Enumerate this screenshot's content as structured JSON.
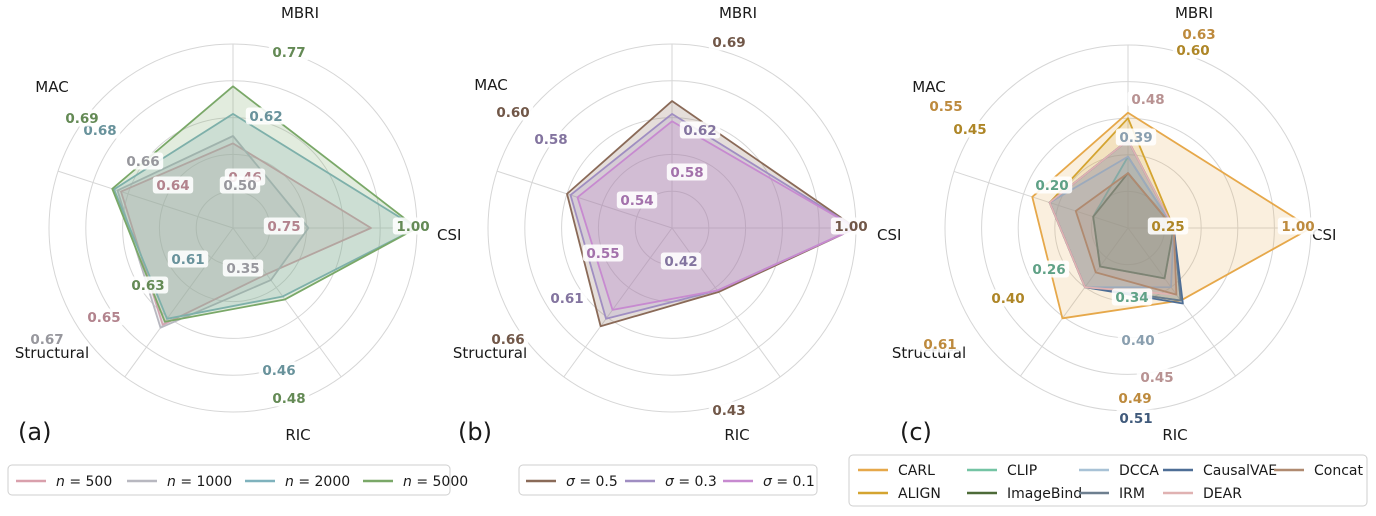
{
  "chart_data": [
    {
      "type": "radar",
      "panel_label": "(a)",
      "axes": [
        "MBRI",
        "CSI",
        "RIC",
        "Structural",
        "MAC"
      ],
      "rlim": [
        0,
        1.0
      ],
      "grid": true,
      "legend_position": "bottom",
      "series": [
        {
          "name": "n = 500",
          "legend_math": {
            "var": "n",
            "rhs": "= 500"
          },
          "color": "#d9a0ac",
          "values": [
            0.46,
            0.75,
            0.31,
            0.65,
            0.64
          ]
        },
        {
          "name": "n = 1000",
          "legend_math": {
            "var": "n",
            "rhs": "= 1000"
          },
          "color": "#b8b8c0",
          "values": [
            0.5,
            0.41,
            0.35,
            0.67,
            0.66
          ]
        },
        {
          "name": "n = 2000",
          "legend_math": {
            "var": "n",
            "rhs": "= 2000"
          },
          "color": "#7fb2bd",
          "values": [
            0.62,
            1.0,
            0.46,
            0.61,
            0.68
          ]
        },
        {
          "name": "n = 5000",
          "legend_math": {
            "var": "n",
            "rhs": "= 5000"
          },
          "color": "#7aa868",
          "values": [
            0.77,
            1.0,
            0.48,
            0.63,
            0.69
          ]
        }
      ]
    },
    {
      "type": "radar",
      "panel_label": "(b)",
      "axes": [
        "MBRI",
        "CSI",
        "RIC",
        "Structural",
        "MAC"
      ],
      "rlim": [
        0,
        1.0
      ],
      "grid": true,
      "legend_position": "bottom",
      "series": [
        {
          "name": "σ = 0.5",
          "legend_math": {
            "var": "σ",
            "rhs": "= 0.5"
          },
          "color": "#8a6a58",
          "values": [
            0.69,
            1.0,
            0.43,
            0.66,
            0.6
          ]
        },
        {
          "name": "σ = 0.3",
          "legend_math": {
            "var": "σ",
            "rhs": "= 0.3"
          },
          "color": "#a08ec2",
          "values": [
            0.62,
            1.0,
            0.42,
            0.61,
            0.58
          ]
        },
        {
          "name": "σ = 0.1",
          "legend_math": {
            "var": "σ",
            "rhs": "= 0.1"
          },
          "color": "#c78ad0",
          "values": [
            0.58,
            1.0,
            0.42,
            0.55,
            0.54
          ]
        }
      ]
    },
    {
      "type": "radar",
      "panel_label": "(c)",
      "axes": [
        "MBRI",
        "CSI",
        "RIC",
        "Structural",
        "MAC"
      ],
      "rlim": [
        0,
        1.0
      ],
      "grid": true,
      "legend_position": "bottom",
      "series": [
        {
          "name": "CARL",
          "color": "#e6a84a",
          "values": [
            0.63,
            1.0,
            0.49,
            0.61,
            0.55
          ]
        },
        {
          "name": "ALIGN",
          "color": "#d4a430",
          "values": [
            0.6,
            0.25,
            0.49,
            0.4,
            0.45
          ]
        },
        {
          "name": "CLIP",
          "color": "#74c4a4",
          "values": [
            0.39,
            0.25,
            0.34,
            0.26,
            0.2
          ]
        },
        {
          "name": "ImageBind",
          "color": "#4d6b38",
          "values": [
            0.3,
            0.25,
            0.34,
            0.26,
            0.2
          ]
        },
        {
          "name": "DCCA",
          "color": "#a8c2d6",
          "values": [
            0.39,
            0.25,
            0.4,
            0.4,
            0.45
          ]
        },
        {
          "name": "IRM",
          "color": "#6d7f8f",
          "values": [
            0.48,
            0.25,
            0.49,
            0.4,
            0.45
          ]
        },
        {
          "name": "CausalVAE",
          "color": "#4e6e96",
          "values": [
            0.48,
            0.25,
            0.51,
            0.4,
            0.45
          ]
        },
        {
          "name": "DEAR",
          "color": "#e0b2b2",
          "values": [
            0.48,
            0.25,
            0.45,
            0.4,
            0.45
          ]
        },
        {
          "name": "Concat",
          "color": "#b08a70",
          "values": [
            0.3,
            0.25,
            0.45,
            0.3,
            0.3
          ]
        }
      ]
    }
  ]
}
